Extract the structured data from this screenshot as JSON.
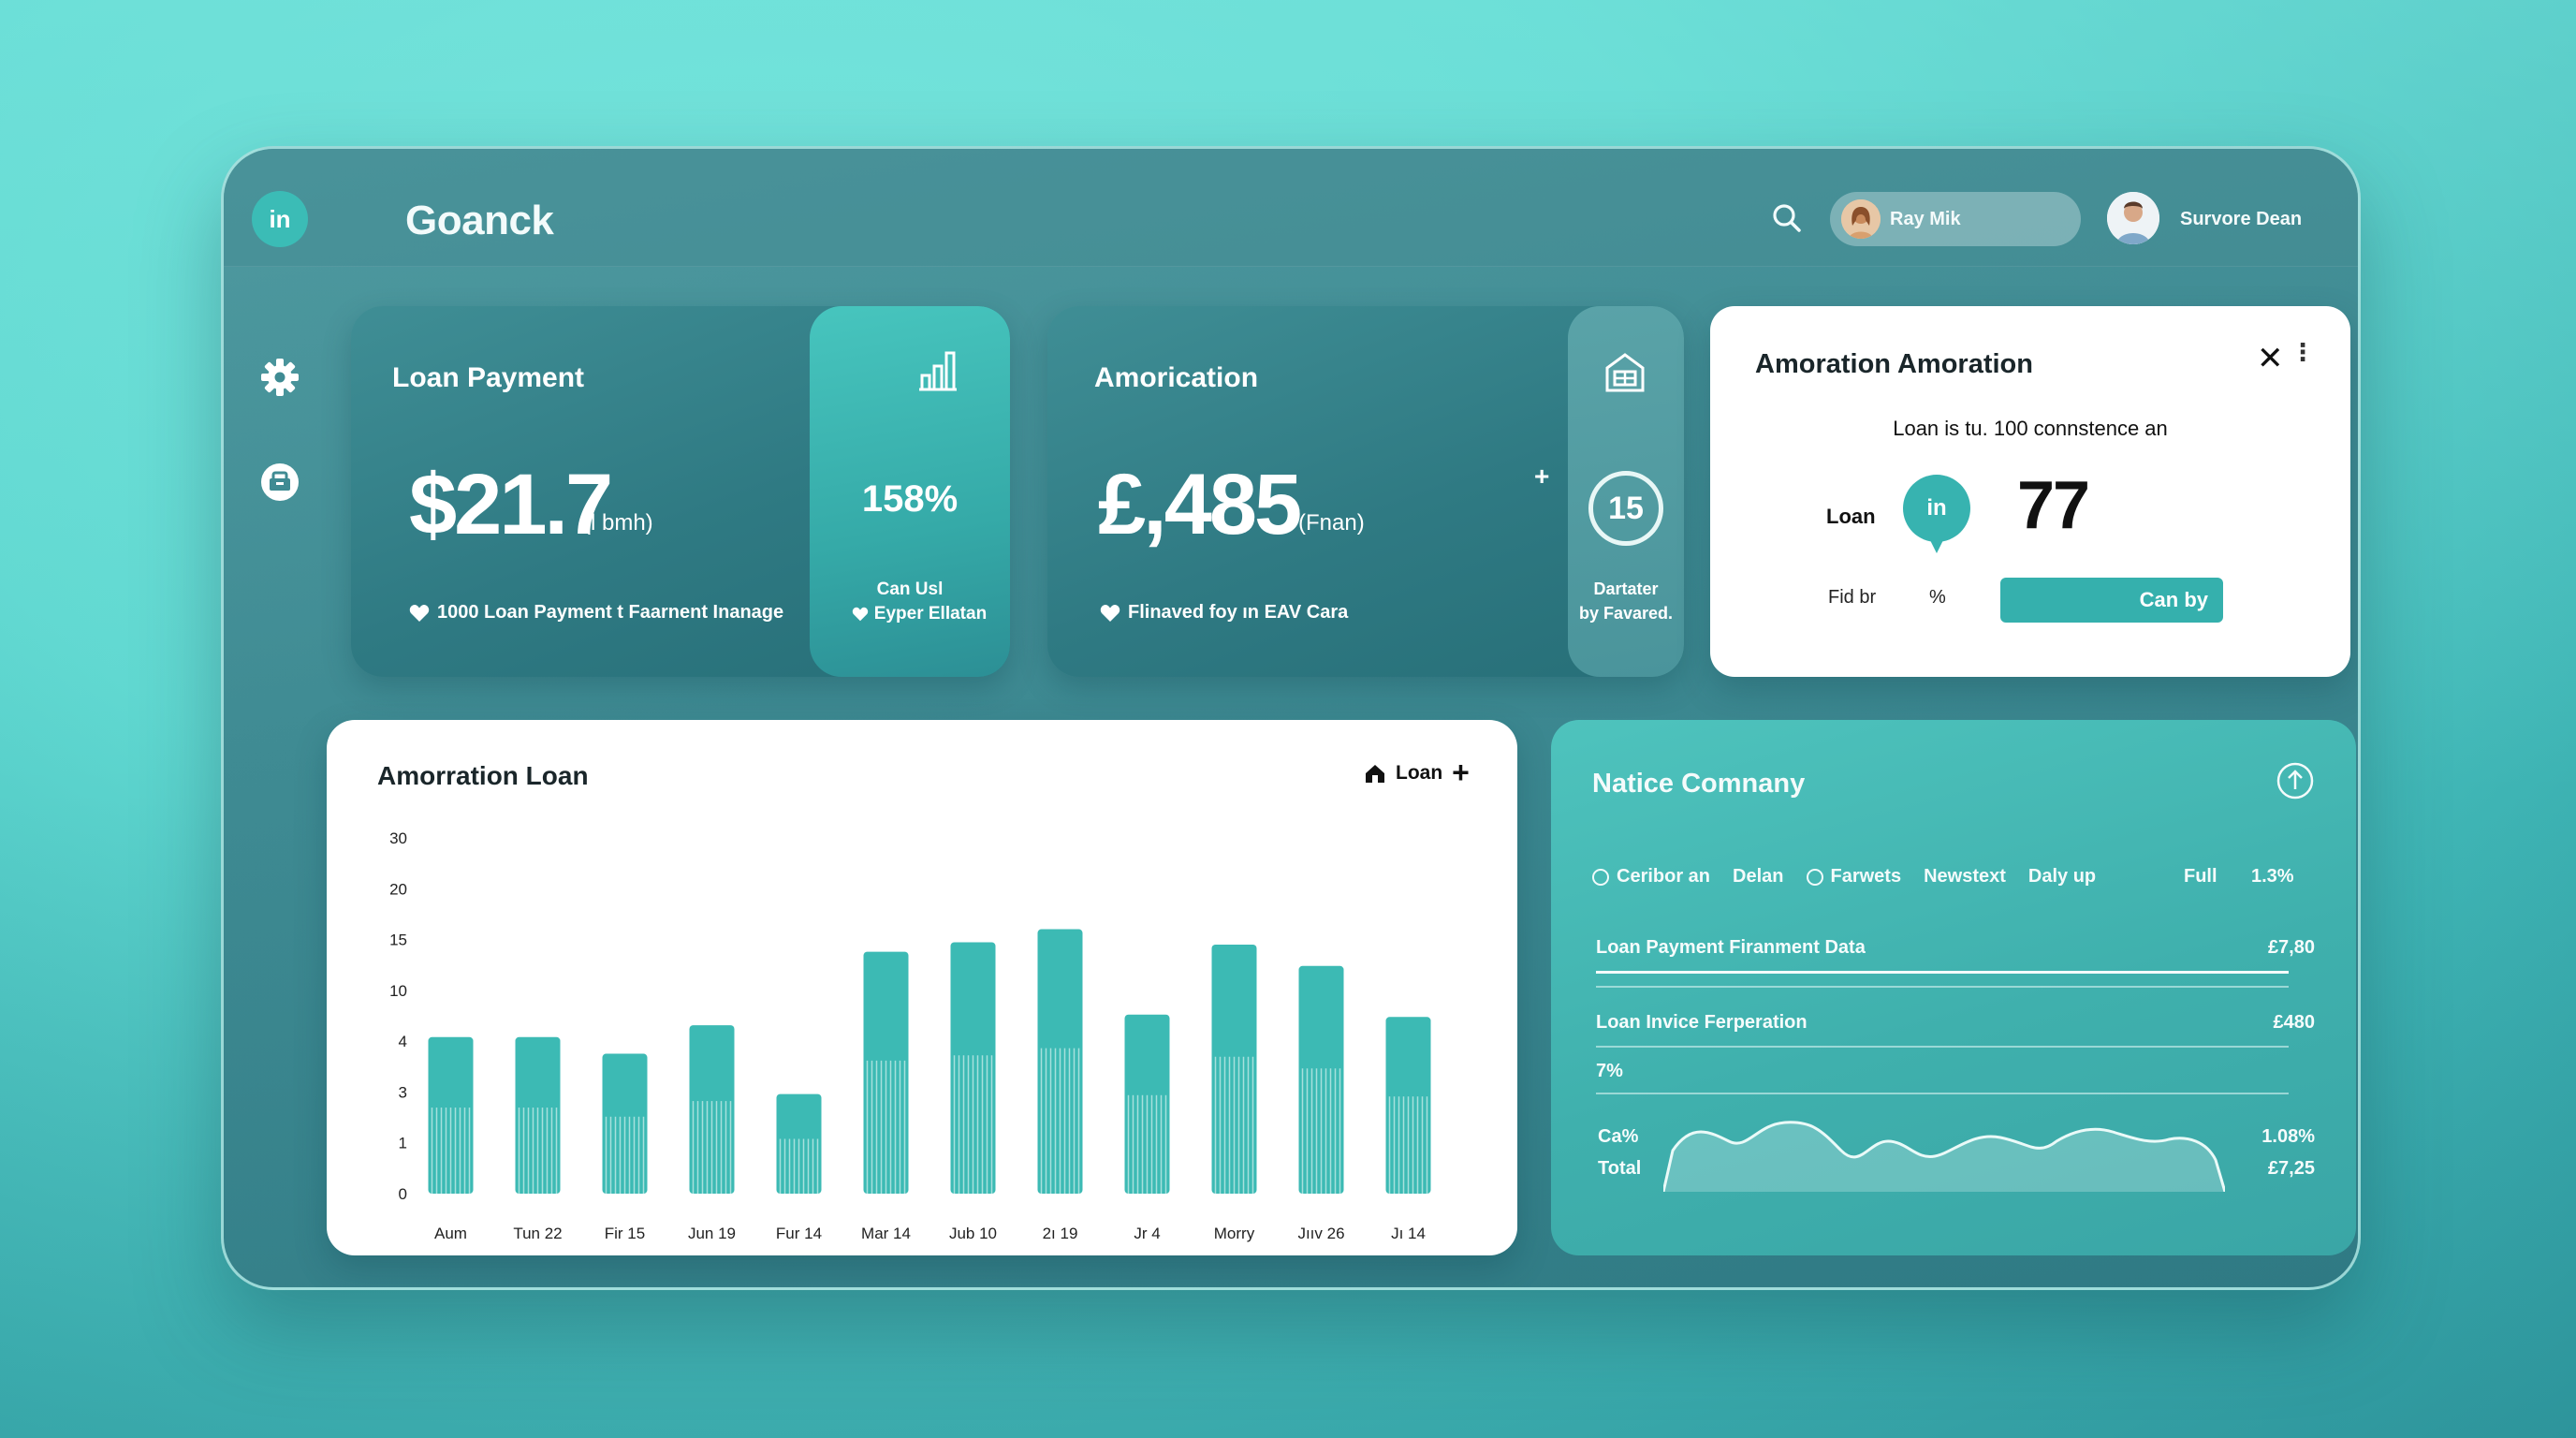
{
  "app": {
    "logo": "in",
    "title": "Goanck"
  },
  "header": {
    "user1": {
      "name": "Ray Mik"
    },
    "user2": {
      "name": "Survore Dean"
    }
  },
  "loan_payment": {
    "title": "Loan Payment",
    "value": "$21.7",
    "unit": "(l bmh)",
    "footer": "1000 Loan Payment t Faarnent Inanage",
    "side_percent": "158%",
    "side_caption_1": "Can Usl",
    "side_caption_2": "Eyper Ellatan"
  },
  "amortization": {
    "title": "Amorication",
    "value": "£,485",
    "unit": "(Fnan)",
    "plus": "+",
    "footer": "Flinaved foy ın EAV Cara",
    "ring_value": "15",
    "side_caption_1": "Dartater",
    "side_caption_2": "by Favared."
  },
  "popup": {
    "title": "Amoration Amoration",
    "subtitle": "Loan is tu. 100 connstence an",
    "loan_label": "Loan",
    "pin_label": "in",
    "big_number": "77",
    "fid_label": "Fid br",
    "percent_label": "%",
    "button": "Can by"
  },
  "chart_card": {
    "title": "Amorration Loan",
    "legend": "Loan",
    "legend_plus": "+"
  },
  "chart_data": {
    "type": "bar",
    "title": "Amorration Loan",
    "categories": [
      "Aum",
      "Tun 22",
      "Fir 15",
      "Jun 19",
      "Fur 14",
      "Mar 14",
      "Jub 10",
      "2ı 19",
      "Jr 4",
      "Morry",
      "Jııv 26",
      "Jı 14"
    ],
    "y_tick_labels": [
      "0",
      "1",
      "3",
      "4",
      "10",
      "15",
      "20",
      "30"
    ],
    "series": [
      {
        "values": [
          13.2,
          13.2,
          11.8,
          14.2,
          8.4,
          20.4,
          21.2,
          22.3,
          15.1,
          21.0,
          19.2,
          14.9
        ]
      }
    ],
    "ylim": [
      0,
      30
    ],
    "grid": false,
    "color": "#3cbab4"
  },
  "company": {
    "title": "Natice Comnany",
    "filters": [
      "Ceribor an",
      "Delan",
      "Farwets",
      "Newstext",
      "Daly up"
    ],
    "filter_full": "Full",
    "filter_pct": "1.3%",
    "rows": [
      {
        "label": "Loan Payment Firanment Data",
        "value": "£7,80"
      },
      {
        "label": "Loan  Invice Ferperation",
        "value": "£480"
      },
      {
        "label": "7%",
        "value": ""
      }
    ],
    "ca_label": "Ca%",
    "ca_value": "1.08%",
    "total_label": "Total",
    "total_value": "£7,25"
  }
}
